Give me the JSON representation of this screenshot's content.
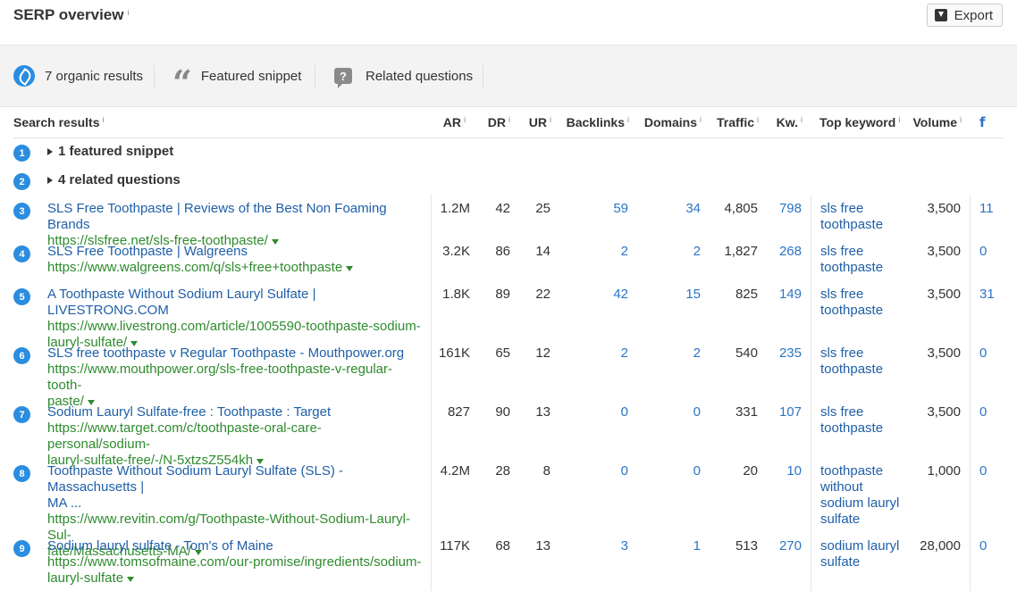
{
  "header": {
    "title": "SERP overview",
    "info": "i",
    "export_label": "Export"
  },
  "features": [
    {
      "label": "7 organic results",
      "icon": "leaf-icon"
    },
    {
      "label": "Featured snippet",
      "icon": "quote-icon",
      "glyph": "“"
    },
    {
      "label": "Related questions",
      "icon": "question-icon",
      "glyph": "?"
    }
  ],
  "columns": {
    "search_results": "Search results",
    "ar": "AR",
    "dr": "DR",
    "ur": "UR",
    "backlinks": "Backlinks",
    "domains": "Domains",
    "traffic": "Traffic",
    "kw": "Kw.",
    "top_keyword": "Top keyword",
    "volume": "Volume",
    "info": "i",
    "facebook": "f"
  },
  "groups": [
    {
      "num": "1",
      "label": "1 featured snippet"
    },
    {
      "num": "2",
      "label": "4 related questions"
    }
  ],
  "rows": [
    {
      "num": "3",
      "title": [
        "SLS Free Toothpaste | Reviews of the Best Non Foaming Brands"
      ],
      "url": [
        "https://slsfree.net/sls-free-toothpaste/"
      ],
      "ar": "1.2M",
      "dr": "42",
      "ur": "25",
      "backlinks": "59",
      "domains": "34",
      "traffic": "4,805",
      "kw": "798",
      "top_keyword": [
        "sls free",
        "toothpaste"
      ],
      "volume": "3,500",
      "fb": "11"
    },
    {
      "num": "4",
      "title": [
        "SLS Free Toothpaste | Walgreens"
      ],
      "url": [
        "https://www.walgreens.com/q/sls+free+toothpaste"
      ],
      "ar": "3.2K",
      "dr": "86",
      "ur": "14",
      "backlinks": "2",
      "domains": "2",
      "traffic": "1,827",
      "kw": "268",
      "top_keyword": [
        "sls free",
        "toothpaste"
      ],
      "volume": "3,500",
      "fb": "0"
    },
    {
      "num": "5",
      "title": [
        "A Toothpaste Without Sodium Lauryl Sulfate | LIVESTRONG.COM"
      ],
      "url": [
        "https://www.livestrong.com/article/1005590-toothpaste-sodium-",
        "lauryl-sulfate/"
      ],
      "ar": "1.8K",
      "dr": "89",
      "ur": "22",
      "backlinks": "42",
      "domains": "15",
      "traffic": "825",
      "kw": "149",
      "top_keyword": [
        "sls free",
        "toothpaste"
      ],
      "volume": "3,500",
      "fb": "31"
    },
    {
      "num": "6",
      "title": [
        "SLS free toothpaste v Regular Toothpaste - Mouthpower.org"
      ],
      "url": [
        "https://www.mouthpower.org/sls-free-toothpaste-v-regular-tooth-",
        "paste/"
      ],
      "ar": "161K",
      "dr": "65",
      "ur": "12",
      "backlinks": "2",
      "domains": "2",
      "traffic": "540",
      "kw": "235",
      "top_keyword": [
        "sls free",
        "toothpaste"
      ],
      "volume": "3,500",
      "fb": "0"
    },
    {
      "num": "7",
      "title": [
        "Sodium Lauryl Sulfate-free : Toothpaste : Target"
      ],
      "url": [
        "https://www.target.com/c/toothpaste-oral-care-personal/sodium-",
        "lauryl-sulfate-free/-/N-5xtzsZ554kh"
      ],
      "ar": "827",
      "dr": "90",
      "ur": "13",
      "backlinks": "0",
      "domains": "0",
      "traffic": "331",
      "kw": "107",
      "top_keyword": [
        "sls free",
        "toothpaste"
      ],
      "volume": "3,500",
      "fb": "0"
    },
    {
      "num": "8",
      "title": [
        "Toothpaste Without Sodium Lauryl Sulfate (SLS) - Massachusetts |",
        "MA ..."
      ],
      "url": [
        "https://www.revitin.com/g/Toothpaste-Without-Sodium-Lauryl-Sul-",
        "fate/Massachusetts-MA/"
      ],
      "ar": "4.2M",
      "dr": "28",
      "ur": "8",
      "backlinks": "0",
      "domains": "0",
      "traffic": "20",
      "kw": "10",
      "top_keyword": [
        "toothpaste",
        "without",
        "sodium lauryl",
        "sulfate"
      ],
      "volume": "1,000",
      "fb": "0"
    },
    {
      "num": "9",
      "title": [
        "Sodium lauryl sulfate - Tom's of Maine"
      ],
      "url": [
        "https://www.tomsofmaine.com/our-promise/ingredients/sodium-",
        "lauryl-sulfate"
      ],
      "ar": "117K",
      "dr": "68",
      "ur": "13",
      "backlinks": "3",
      "domains": "1",
      "traffic": "513",
      "kw": "270",
      "top_keyword": [
        "sodium lauryl",
        "sulfate"
      ],
      "volume": "28,000",
      "fb": "0"
    }
  ]
}
